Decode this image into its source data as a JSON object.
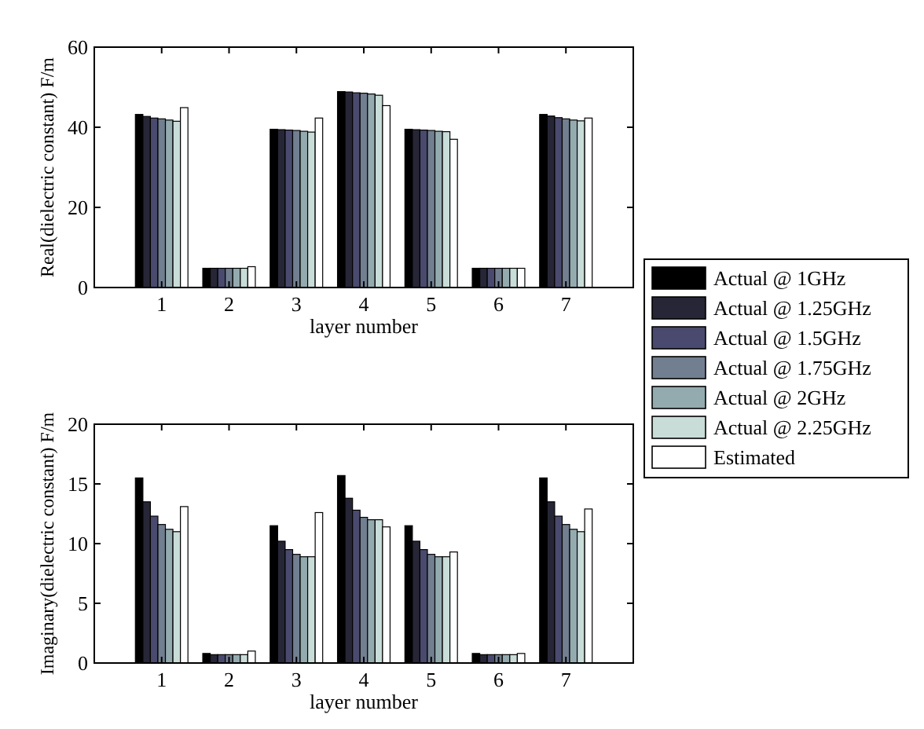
{
  "chart_data": [
    {
      "type": "bar",
      "xlabel": "layer number",
      "ylabel": "Real(dielectric constant) F/m",
      "categories": [
        "1",
        "2",
        "3",
        "4",
        "5",
        "6",
        "7"
      ],
      "ylim": [
        0,
        60
      ],
      "yticks": [
        0,
        20,
        40,
        60
      ],
      "legend": "right",
      "series": [
        {
          "name": "Actual @ 1GHz",
          "color": "#000000",
          "values": [
            43.2,
            4.8,
            39.5,
            48.9,
            39.5,
            4.8,
            43.2
          ]
        },
        {
          "name": "Actual @ 1.25GHz",
          "color": "#262636",
          "values": [
            42.7,
            4.8,
            39.4,
            48.8,
            39.4,
            4.8,
            42.8
          ]
        },
        {
          "name": "Actual @ 1.5GHz",
          "color": "#4a4a6e",
          "values": [
            42.3,
            4.8,
            39.3,
            48.6,
            39.3,
            4.8,
            42.4
          ]
        },
        {
          "name": "Actual @ 1.75GHz",
          "color": "#717f90",
          "values": [
            42.1,
            4.8,
            39.2,
            48.5,
            39.2,
            4.8,
            42.1
          ]
        },
        {
          "name": "Actual @ 2GHz",
          "color": "#93abaf",
          "values": [
            41.8,
            4.8,
            39.0,
            48.3,
            39.0,
            4.8,
            41.8
          ]
        },
        {
          "name": "Actual @ 2.25GHz",
          "color": "#c8dcd8",
          "values": [
            41.5,
            4.8,
            38.8,
            48.0,
            38.9,
            4.8,
            41.6
          ]
        },
        {
          "name": "Estimated",
          "color": "#ffffff",
          "values": [
            44.9,
            5.2,
            42.3,
            45.4,
            37.0,
            4.8,
            42.3
          ]
        }
      ]
    },
    {
      "type": "bar",
      "xlabel": "layer number",
      "ylabel": "Imaginary(dielectric constant) F/m",
      "categories": [
        "1",
        "2",
        "3",
        "4",
        "5",
        "6",
        "7"
      ],
      "ylim": [
        0,
        20
      ],
      "yticks": [
        0,
        5,
        10,
        15,
        20
      ],
      "series": [
        {
          "color": "#000000",
          "values": [
            15.5,
            0.8,
            11.5,
            15.7,
            11.5,
            0.8,
            15.5
          ]
        },
        {
          "color": "#262636",
          "values": [
            13.5,
            0.7,
            10.2,
            13.8,
            10.2,
            0.7,
            13.5
          ]
        },
        {
          "color": "#4a4a6e",
          "values": [
            12.3,
            0.7,
            9.5,
            12.8,
            9.5,
            0.7,
            12.3
          ]
        },
        {
          "color": "#717f90",
          "values": [
            11.6,
            0.7,
            9.1,
            12.2,
            9.1,
            0.7,
            11.6
          ]
        },
        {
          "color": "#93abaf",
          "values": [
            11.2,
            0.7,
            8.9,
            12.0,
            8.9,
            0.7,
            11.2
          ]
        },
        {
          "color": "#c8dcd8",
          "values": [
            11.0,
            0.7,
            8.9,
            12.0,
            8.9,
            0.7,
            11.0
          ]
        },
        {
          "color": "#ffffff",
          "values": [
            13.1,
            1.0,
            12.6,
            11.4,
            9.3,
            0.8,
            12.9
          ]
        }
      ]
    }
  ]
}
